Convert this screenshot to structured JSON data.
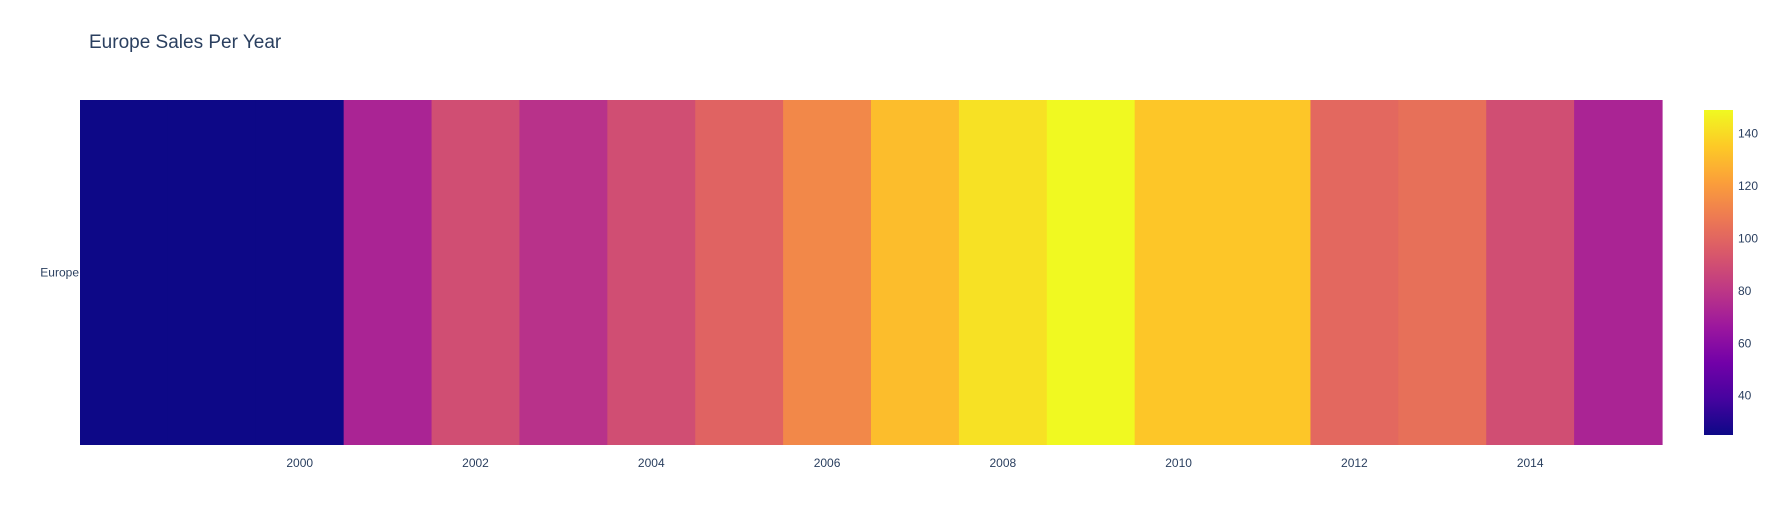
{
  "chart_data": {
    "type": "heatmap",
    "title": "Europe Sales Per Year",
    "xlabel": "",
    "ylabel": "",
    "y_categories": [
      "Europe"
    ],
    "x": [
      1998,
      1999,
      2000,
      2001,
      2002,
      2003,
      2004,
      2005,
      2006,
      2007,
      2008,
      2009,
      2010,
      2011,
      2012,
      2013,
      2014,
      2015
    ],
    "values": [
      [
        25,
        25,
        25,
        72,
        90,
        78,
        90,
        99,
        113,
        131,
        142,
        149,
        134,
        134,
        101,
        104,
        90,
        72
      ]
    ],
    "x_ticks": [
      "2000",
      "2002",
      "2004",
      "2006",
      "2008",
      "2010",
      "2012",
      "2014"
    ],
    "y_ticks": [
      "Europe"
    ],
    "colorscale": "plasma",
    "zrange": [
      25,
      149
    ],
    "colorbar_ticks": [
      "40",
      "60",
      "80",
      "100",
      "120",
      "140"
    ],
    "grid": false,
    "colorbar_position": "right"
  }
}
